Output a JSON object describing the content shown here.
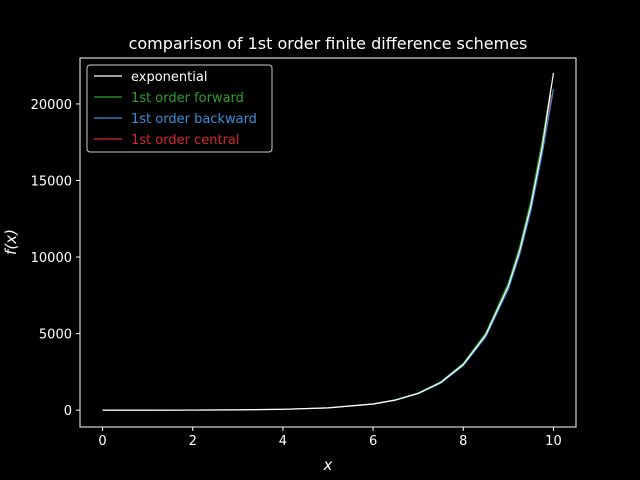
{
  "chart_data": {
    "type": "line",
    "title": "comparison of 1st order finite difference schemes",
    "xlabel": "x",
    "ylabel": "f(x)",
    "xlim": [
      -0.5,
      10.5
    ],
    "ylim": [
      -1100,
      23000
    ],
    "xticks": [
      0,
      2,
      4,
      6,
      8,
      10
    ],
    "yticks": [
      0,
      5000,
      10000,
      15000,
      20000
    ],
    "grid": false,
    "legend": "top-left",
    "colors": {
      "background": "#000000",
      "axes": "#ffffff",
      "text": "#ffffff"
    },
    "series": [
      {
        "name": "exponential",
        "color": "#ffffff",
        "x": [
          0,
          1,
          2,
          3,
          4,
          5,
          6,
          6.5,
          7,
          7.5,
          8,
          8.5,
          9,
          9.25,
          9.5,
          9.75,
          10
        ],
        "y": [
          1,
          3,
          7,
          20,
          55,
          148,
          403,
          665,
          1097,
          1808,
          2981,
          4915,
          8103,
          10405,
          13360,
          17154,
          22026
        ]
      },
      {
        "name": "1st order forward",
        "color": "#2ca02c",
        "x": [
          0,
          1,
          2,
          3,
          4,
          5,
          6,
          6.5,
          7,
          7.5,
          8,
          8.5,
          9,
          9.25,
          9.5,
          9.75,
          9.95
        ],
        "y": [
          1,
          3,
          7,
          20,
          56,
          152,
          413,
          681,
          1124,
          1853,
          3056,
          5038,
          8306,
          10665,
          13694,
          17583,
          21156
        ]
      },
      {
        "name": "1st order backward",
        "color": "#3a8fdc",
        "x": [
          0.05,
          1,
          2,
          3,
          4,
          5,
          6,
          6.5,
          7,
          7.5,
          8,
          8.5,
          9,
          9.25,
          9.5,
          9.75,
          10
        ],
        "y": [
          1,
          3,
          7,
          19,
          53,
          144,
          393,
          649,
          1070,
          1764,
          2908,
          4795,
          7905,
          10151,
          13034,
          16735,
          20967
        ]
      },
      {
        "name": "1st order central",
        "color": "#d62728",
        "x": [
          0.05,
          1,
          2,
          3,
          4,
          5,
          6,
          6.5,
          7,
          7.5,
          8,
          8.5,
          9,
          9.25,
          9.5,
          9.75,
          9.95
        ],
        "y": [
          1,
          3,
          7,
          20,
          55,
          148,
          403,
          665,
          1097,
          1808,
          2981,
          4915,
          8103,
          10405,
          13360,
          17154,
          20601
        ]
      }
    ]
  }
}
